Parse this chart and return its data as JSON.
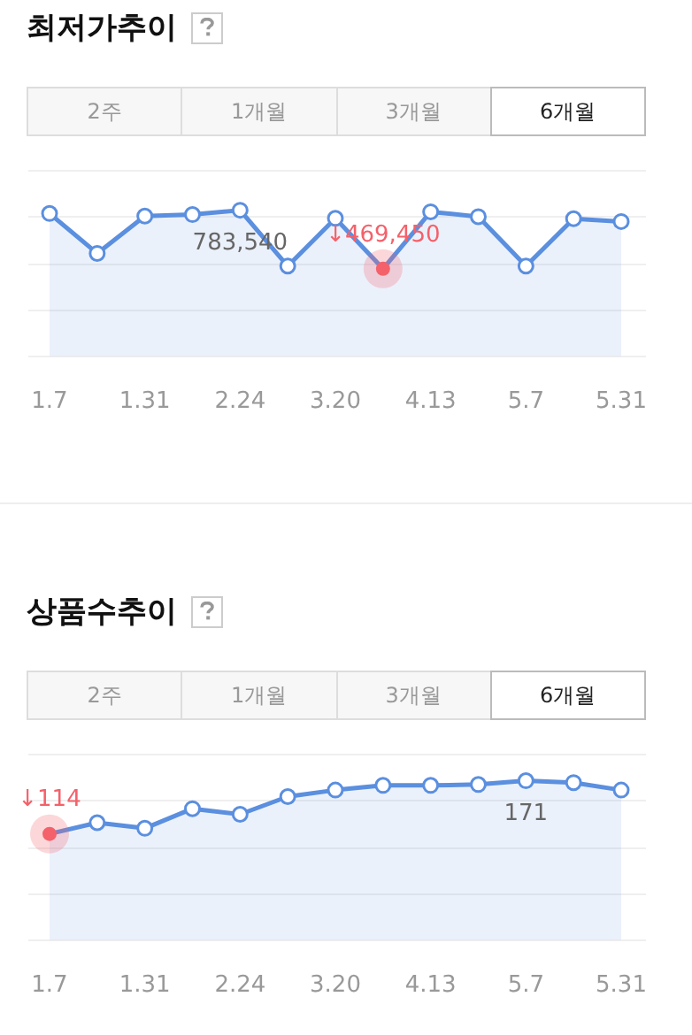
{
  "chart_data": [
    {
      "type": "area",
      "title": "최저가추이",
      "annotations": [
        "2주",
        "1개월",
        "3개월",
        "6개월"
      ],
      "categories": [
        "1.7",
        null,
        "1.31",
        null,
        "2.24",
        null,
        "3.20",
        null,
        "4.13",
        null,
        "5.7",
        null,
        "5.31"
      ],
      "values": [
        766000,
        552000,
        752000,
        760000,
        783540,
        484000,
        740000,
        469450,
        775000,
        749000,
        484000,
        738000,
        723000
      ],
      "value_labels": [
        null,
        null,
        null,
        null,
        "783,540",
        null,
        null,
        "↓469,450",
        null,
        null,
        null,
        null,
        null
      ],
      "color": "#5b8fdf",
      "ylim": [
        0,
        1000000
      ],
      "yticks": [
        {
          "value": 0,
          "label": null
        },
        {
          "value": 250000,
          "label": null
        },
        {
          "value": 500000,
          "label": null
        },
        {
          "value": 750000,
          "label": null
        },
        {
          "value": 1000000,
          "label": null
        }
      ],
      "grid": "y",
      "tick_labels": "x",
      "marker": "circle"
    },
    {
      "type": "area",
      "title": "상품수추이",
      "annotations": [
        "2주",
        "1개월",
        "3개월",
        "6개월"
      ],
      "categories": [
        "1.7",
        null,
        "1.31",
        null,
        "2.24",
        null,
        "3.20",
        null,
        "4.13",
        null,
        "5.7",
        null,
        "5.31"
      ],
      "values": [
        114,
        126,
        120,
        141,
        135,
        154,
        161,
        166,
        166,
        167,
        171,
        169,
        161
      ],
      "value_labels": [
        "↓114",
        null,
        null,
        null,
        null,
        null,
        null,
        null,
        null,
        null,
        "171",
        null,
        null
      ],
      "color": "#5b8fdf",
      "ylim": [
        0,
        200
      ],
      "yticks": [
        {
          "value": 0,
          "label": null
        },
        {
          "value": 50,
          "label": null
        },
        {
          "value": 100,
          "label": null
        },
        {
          "value": 150,
          "label": null
        },
        {
          "value": 200,
          "label": null
        }
      ],
      "grid": "y",
      "tick_labels": "x",
      "marker": "circle"
    }
  ]
}
